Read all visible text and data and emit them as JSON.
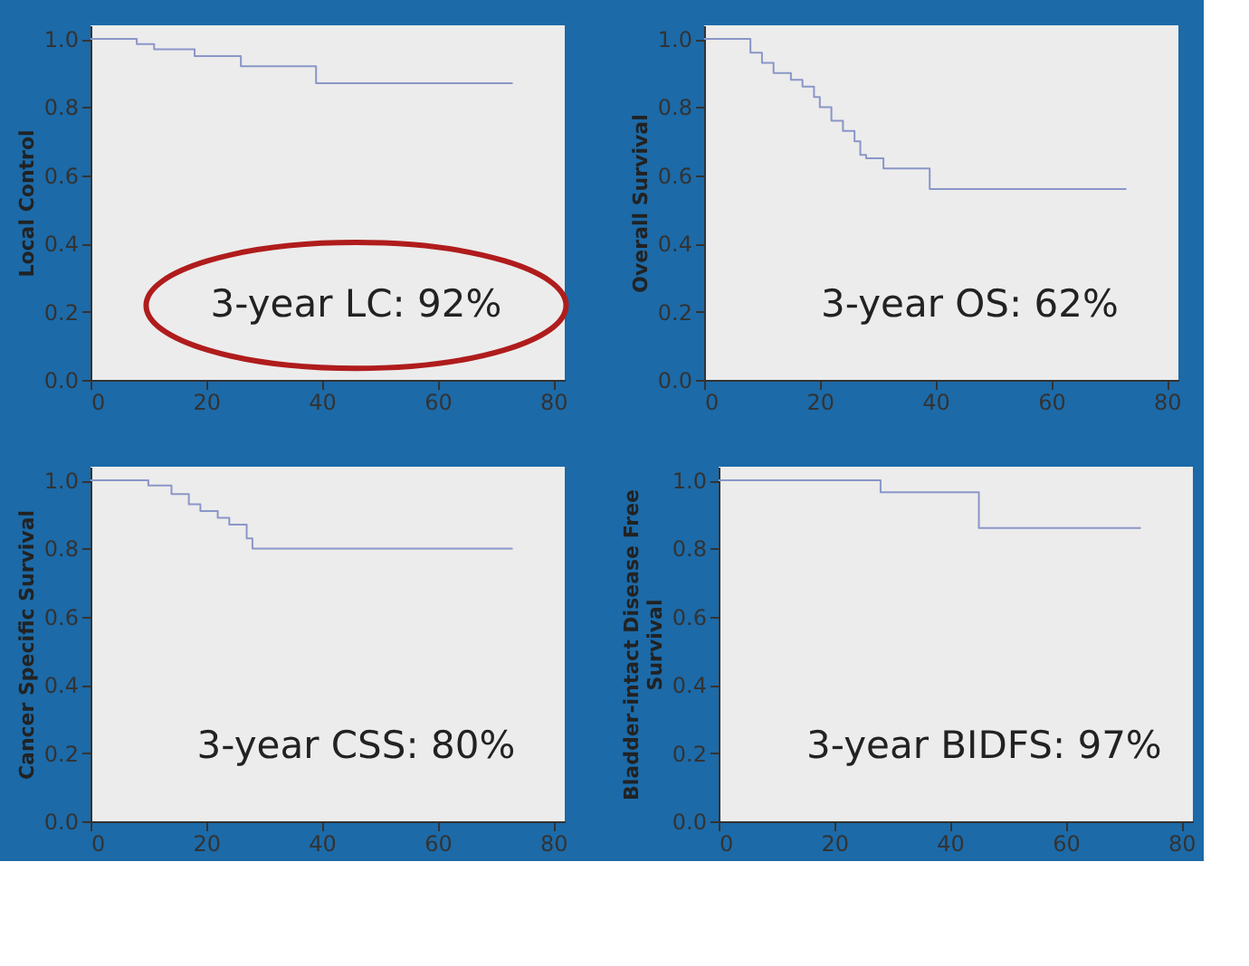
{
  "chart_data": [
    {
      "type": "step",
      "ylabel": "Local Control",
      "annotations": [
        "3-year LC: 92%"
      ],
      "x": [
        0,
        8,
        11,
        18,
        26,
        39,
        73
      ],
      "series": [
        {
          "color": "#8a96c8",
          "values": [
            1.0,
            0.985,
            0.97,
            0.95,
            0.92,
            0.87,
            0.87
          ]
        }
      ],
      "xlim": [
        0,
        82
      ],
      "ylim": [
        0,
        1.04
      ],
      "xticks": [
        0,
        20,
        40,
        60,
        80
      ],
      "yticks": [
        {
          "value": 0,
          "label": "0.0"
        },
        {
          "value": 0.2,
          "label": "0.2"
        },
        {
          "value": 0.4,
          "label": "0.4"
        },
        {
          "value": 0.6,
          "label": "0.6"
        },
        {
          "value": 0.8,
          "label": "0.8"
        },
        {
          "value": 1,
          "label": "1.0"
        }
      ],
      "grid": false
    },
    {
      "type": "step",
      "ylabel": "Overall Survival",
      "annotations": [
        "3-year OS: 62%"
      ],
      "x": [
        0,
        8,
        10,
        12,
        15,
        17,
        19,
        20,
        22,
        24,
        26,
        27,
        28,
        31,
        39,
        73
      ],
      "series": [
        {
          "color": "#8a96c8",
          "values": [
            1.0,
            0.96,
            0.93,
            0.9,
            0.88,
            0.86,
            0.83,
            0.8,
            0.76,
            0.73,
            0.7,
            0.66,
            0.65,
            0.62,
            0.56,
            0.56
          ]
        }
      ],
      "xlim": [
        0,
        82
      ],
      "ylim": [
        0,
        1.04
      ],
      "xticks": [
        0,
        20,
        40,
        60,
        80
      ],
      "yticks": [
        {
          "value": 0,
          "label": "0.0"
        },
        {
          "value": 0.2,
          "label": "0.2"
        },
        {
          "value": 0.4,
          "label": "0.4"
        },
        {
          "value": 0.6,
          "label": "0.6"
        },
        {
          "value": 0.8,
          "label": "0.8"
        },
        {
          "value": 1,
          "label": "1.0"
        }
      ],
      "grid": false
    },
    {
      "type": "step",
      "ylabel": "Cancer Specific Survival",
      "annotations": [
        "3-year CSS: 80%"
      ],
      "x": [
        0,
        10,
        14,
        17,
        19,
        22,
        24,
        27,
        28,
        73
      ],
      "series": [
        {
          "color": "#8a96c8",
          "values": [
            1.0,
            0.985,
            0.96,
            0.93,
            0.91,
            0.89,
            0.87,
            0.83,
            0.8,
            0.8
          ]
        }
      ],
      "xlim": [
        0,
        82
      ],
      "ylim": [
        0,
        1.04
      ],
      "xticks": [
        0,
        20,
        40,
        60,
        80
      ],
      "yticks": [
        {
          "value": 0,
          "label": "0.0"
        },
        {
          "value": 0.2,
          "label": "0.2"
        },
        {
          "value": 0.4,
          "label": "0.4"
        },
        {
          "value": 0.6,
          "label": "0.6"
        },
        {
          "value": 0.8,
          "label": "0.8"
        },
        {
          "value": 1,
          "label": "1.0"
        }
      ],
      "grid": false
    },
    {
      "type": "step",
      "ylabel": "Bladder-intact Disease Free Survival",
      "annotations": [
        "3-year BIDFS: 97%"
      ],
      "x": [
        0,
        28,
        45,
        73
      ],
      "series": [
        {
          "color": "#8a96c8",
          "values": [
            1.0,
            0.965,
            0.86,
            0.86
          ]
        }
      ],
      "xlim": [
        0,
        82
      ],
      "ylim": [
        0,
        1.04
      ],
      "xticks": [
        0,
        20,
        40,
        60,
        80
      ],
      "yticks": [
        {
          "value": 0,
          "label": "0.0"
        },
        {
          "value": 0.2,
          "label": "0.2"
        },
        {
          "value": 0.4,
          "label": "0.4"
        },
        {
          "value": 0.6,
          "label": "0.6"
        },
        {
          "value": 0.8,
          "label": "0.8"
        },
        {
          "value": 1,
          "label": "1.0"
        }
      ],
      "grid": false
    }
  ]
}
